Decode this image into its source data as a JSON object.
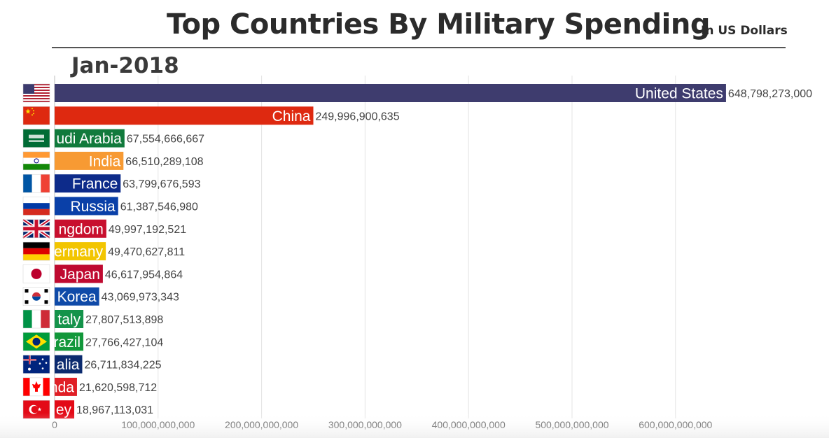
{
  "header": {
    "title": "Top Countries By Military Spending",
    "subtitle": "In US Dollars",
    "date": "Jan-2018"
  },
  "chart_data": {
    "type": "bar",
    "orientation": "horizontal",
    "title": "Top Countries By Military Spending",
    "unit": "US Dollars",
    "period": "Jan-2018",
    "xlim": [
      0,
      650000000000
    ],
    "ticks": [
      0,
      100000000000,
      200000000000,
      300000000000,
      400000000000,
      500000000000,
      600000000000
    ],
    "tick_labels": [
      "0",
      "100,000,000,000",
      "200,000,000,000",
      "300,000,000,000",
      "400,000,000,000",
      "500,000,000,000",
      "600,000,000,000"
    ],
    "bars": [
      {
        "label": "United States",
        "visible_label": "United States",
        "value": 648798273000,
        "value_label": "648,798,273,000",
        "color": "#3e3c6e",
        "flag": "us"
      },
      {
        "label": "China",
        "visible_label": "China",
        "value": 249996900635,
        "value_label": "249,996,900,635",
        "color": "#de2910",
        "flag": "cn"
      },
      {
        "label": "Saudi Arabia",
        "visible_label": "udi Arabia",
        "value": 67554666667,
        "value_label": "67,554,666,667",
        "color": "#117a3c",
        "flag": "sa"
      },
      {
        "label": "India",
        "visible_label": "India",
        "value": 66510289108,
        "value_label": "66,510,289,108",
        "color": "#f79a33",
        "flag": "in"
      },
      {
        "label": "France",
        "visible_label": "France",
        "value": 63799676593,
        "value_label": "63,799,676,593",
        "color": "#0d2b8a",
        "flag": "fr"
      },
      {
        "label": "Russia",
        "visible_label": "Russia",
        "value": 61387546980,
        "value_label": "61,387,546,980",
        "color": "#0a40a8",
        "flag": "ru"
      },
      {
        "label": "United Kingdom",
        "visible_label": "ngdom",
        "value": 49997192521,
        "value_label": "49,997,192,521",
        "color": "#c8102e",
        "flag": "gb"
      },
      {
        "label": "Germany",
        "visible_label": "ermany",
        "value": 49470627811,
        "value_label": "49,470,627,811",
        "color": "#f2c500",
        "flag": "de"
      },
      {
        "label": "Japan",
        "visible_label": "Japan",
        "value": 46617954864,
        "value_label": "46,617,954,864",
        "color": "#bf0a30",
        "flag": "jp"
      },
      {
        "label": "South Korea",
        "visible_label": "Korea",
        "value": 43069973343,
        "value_label": "43,069,973,343",
        "color": "#0f4aa8",
        "flag": "kr"
      },
      {
        "label": "Italy",
        "visible_label": "taly",
        "value": 27807513898,
        "value_label": "27,807,513,898",
        "color": "#14934a",
        "flag": "it"
      },
      {
        "label": "Brazil",
        "visible_label": "razil",
        "value": 27766427104,
        "value_label": "27,766,427,104",
        "color": "#12973a",
        "flag": "br"
      },
      {
        "label": "Australia",
        "visible_label": "alia",
        "value": 26711834225,
        "value_label": "26,711,834,225",
        "color": "#0b2a6e",
        "flag": "au"
      },
      {
        "label": "Canada",
        "visible_label": "nda",
        "value": 21620598712,
        "value_label": "21,620,598,712",
        "color": "#e01f26",
        "flag": "ca"
      },
      {
        "label": "Turkey",
        "visible_label": "ey",
        "value": 18967113031,
        "value_label": "18,967,113,031",
        "color": "#e30a17",
        "flag": "tr"
      }
    ]
  }
}
